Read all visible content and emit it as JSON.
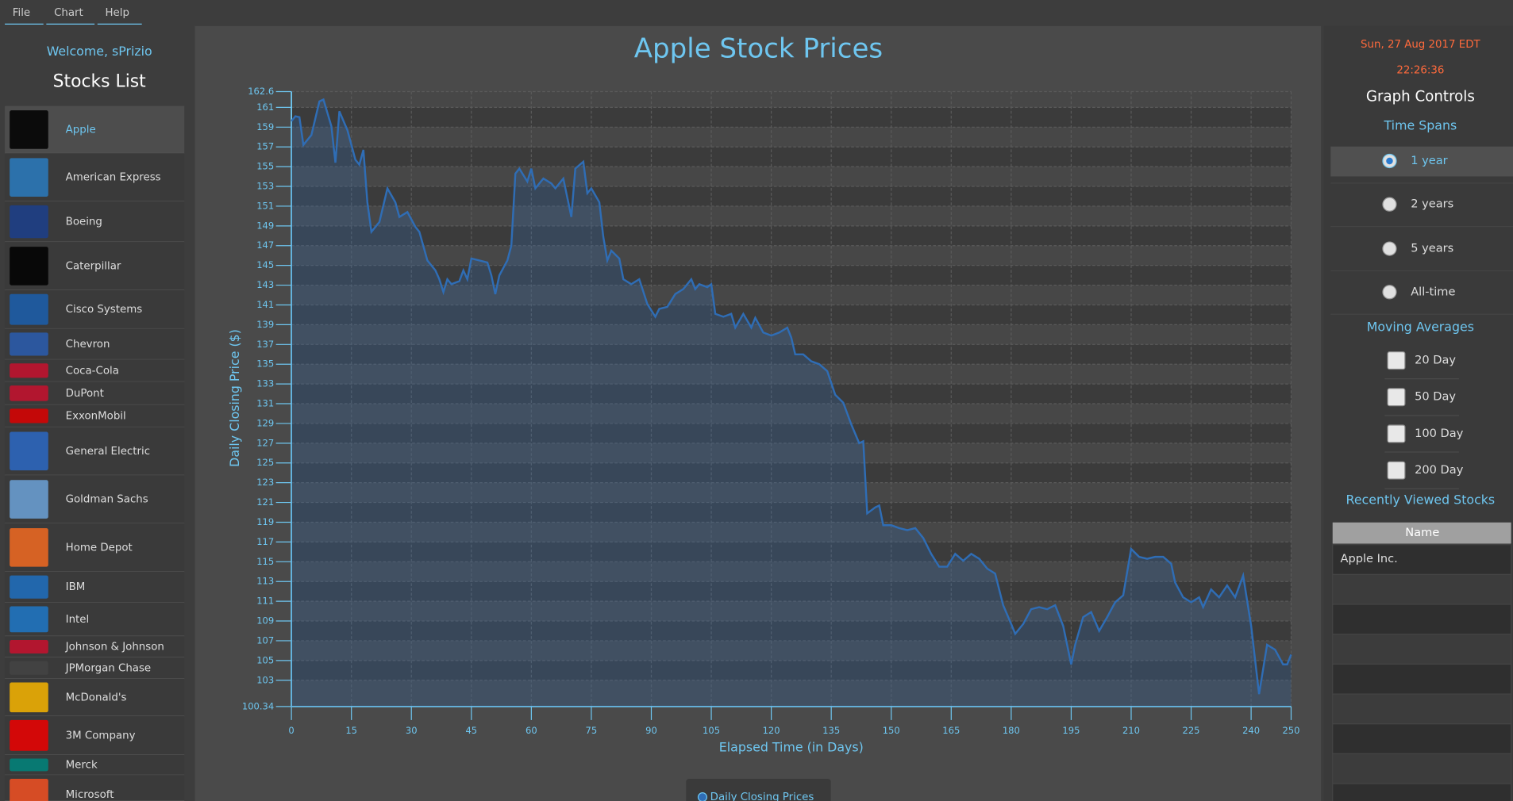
{
  "menu": [
    "File",
    "Chart",
    "Help"
  ],
  "sidebar": {
    "welcome": "Welcome, sPrizio",
    "title": "Stocks List",
    "stocks": [
      "Apple",
      "American Express",
      "Boeing",
      "Caterpillar",
      "Cisco Systems",
      "Chevron",
      "Coca-Cola",
      "DuPont",
      "ExxonMobil",
      "General Electric",
      "Goldman Sachs",
      "Home Depot",
      "IBM",
      "Intel",
      "Johnson & Johnson",
      "JPMorgan Chase",
      "McDonald's",
      "3M Company",
      "Merck",
      "Microsoft"
    ]
  },
  "chart_data": {
    "type": "area",
    "title": "Apple Stock Prices",
    "x_label": "Elapsed Time (in Days)",
    "y_label": "Daily Closing Price ($)",
    "x": [
      0,
      1,
      2,
      3,
      5,
      7,
      8,
      10,
      11,
      12,
      14,
      16,
      17,
      18,
      19,
      20,
      22,
      24,
      26,
      27,
      29,
      31,
      32,
      34,
      36,
      37,
      38,
      39,
      40,
      42,
      43,
      44,
      45,
      47,
      49,
      50,
      51,
      52,
      54,
      55,
      56,
      57,
      59,
      60,
      61,
      63,
      65,
      66,
      68,
      70,
      71,
      73,
      74,
      75,
      77,
      78,
      79,
      80,
      82,
      83,
      85,
      87,
      89,
      91,
      92,
      94,
      96,
      98,
      100,
      101,
      102,
      104,
      105,
      106,
      108,
      110,
      111,
      113,
      115,
      116,
      118,
      120,
      122,
      124,
      125,
      126,
      128,
      130,
      132,
      134,
      136,
      138,
      140,
      142,
      143,
      144,
      146,
      147,
      148,
      150,
      152,
      154,
      156,
      158,
      160,
      162,
      164,
      166,
      168,
      170,
      172,
      174,
      176,
      178,
      180,
      181,
      183,
      185,
      187,
      189,
      191,
      193,
      195,
      196,
      198,
      200,
      202,
      204,
      206,
      208,
      210,
      212,
      214,
      216,
      218,
      220,
      221,
      223,
      225,
      227,
      228,
      230,
      232,
      234,
      236,
      238,
      240,
      242,
      244,
      246,
      248,
      249,
      250
    ],
    "series": [
      {
        "name": "Daily Closing Prices",
        "color": "#2f6db5",
        "values": [
          159.6,
          160.1,
          160,
          157.2,
          158.2,
          161.6,
          161.8,
          159.1,
          155.4,
          160.6,
          158.7,
          155.7,
          155.2,
          156.7,
          151.4,
          148.4,
          149.4,
          152.8,
          151.4,
          149.9,
          150.4,
          148.9,
          148.4,
          145.5,
          144.5,
          143.6,
          142.3,
          143.6,
          143.1,
          143.4,
          144.5,
          143.6,
          145.7,
          145.5,
          145.3,
          144,
          142.1,
          144,
          145.5,
          147,
          154.3,
          154.8,
          153.5,
          154.8,
          152.8,
          153.8,
          153.3,
          152.8,
          153.8,
          149.9,
          154.8,
          155.5,
          152.3,
          152.8,
          151.4,
          147.9,
          145.5,
          146.5,
          145.7,
          143.6,
          143.1,
          143.6,
          141.1,
          139.8,
          140.6,
          140.8,
          142.1,
          142.6,
          143.6,
          142.6,
          143.1,
          142.8,
          143.1,
          140.1,
          139.8,
          140.1,
          138.7,
          140.1,
          138.7,
          139.7,
          138.2,
          137.9,
          138.2,
          138.7,
          137.7,
          136,
          136,
          135.3,
          135,
          134.3,
          131.9,
          131.1,
          128.9,
          127,
          127.2,
          119.9,
          120.5,
          120.7,
          118.7,
          118.7,
          118.4,
          118.2,
          118.4,
          117.4,
          115.8,
          114.5,
          114.5,
          115.8,
          115.1,
          115.8,
          115.3,
          114.3,
          113.8,
          110.6,
          108.7,
          107.7,
          108.7,
          110.2,
          110.4,
          110.2,
          110.6,
          108.5,
          104.6,
          106.6,
          109.4,
          109.9,
          108,
          109.4,
          110.9,
          111.6,
          116.3,
          115.5,
          115.3,
          115.5,
          115.5,
          114.8,
          112.9,
          111.4,
          110.9,
          111.4,
          110.4,
          112.2,
          111.4,
          112.6,
          111.4,
          113.6,
          108.5,
          101.6,
          106.6,
          106.1,
          104.6,
          104.6,
          105.6
        ]
      }
    ],
    "xlim": [
      0,
      250
    ],
    "ylim": [
      100.34,
      162.6
    ],
    "xticks": [
      0,
      15,
      30,
      45,
      60,
      75,
      90,
      105,
      120,
      135,
      150,
      165,
      180,
      195,
      210,
      225,
      240,
      250
    ],
    "yticks": [
      100.34,
      103,
      105,
      107,
      109,
      111,
      113,
      115,
      117,
      119,
      121,
      123,
      125,
      127,
      129,
      131,
      133,
      135,
      137,
      139,
      141,
      143,
      145,
      147,
      149,
      151,
      153,
      155,
      157,
      159,
      161,
      162.6
    ],
    "grid": true
  },
  "controls": {
    "date": "Sun, 27 Aug 2017 EDT",
    "time": "22:26:36",
    "title": "Graph Controls",
    "time_spans_title": "Time Spans",
    "time_spans": [
      {
        "label": "1 year",
        "checked": true
      },
      {
        "label": "2 years",
        "checked": false
      },
      {
        "label": "5 years",
        "checked": false
      },
      {
        "label": "All-time",
        "checked": false
      }
    ],
    "moving_averages_title": "Moving Averages",
    "moving_averages": [
      {
        "label": "20 Day",
        "checked": false
      },
      {
        "label": "50 Day",
        "checked": false
      },
      {
        "label": "100 Day",
        "checked": false
      },
      {
        "label": "200 Day",
        "checked": false
      }
    ],
    "recent_title": "Recently Viewed Stocks",
    "recent_table": {
      "header": "Name",
      "rows": [
        "Apple Inc."
      ]
    }
  }
}
